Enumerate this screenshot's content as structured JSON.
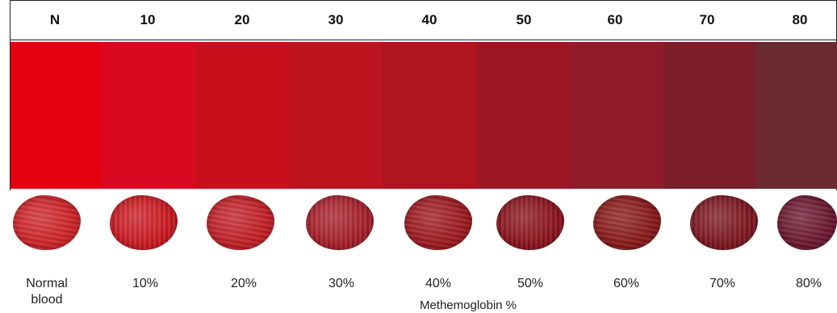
{
  "header_labels": [
    "N",
    "10",
    "20",
    "30",
    "40",
    "50",
    "60",
    "70",
    "80"
  ],
  "swatch_colors": [
    "#e50010",
    "#da0820",
    "#c8101c",
    "#bd1420",
    "#b0141e",
    "#9c1624",
    "#8e1a2a",
    "#7c1e2a",
    "#6a2a2e"
  ],
  "blob_colors": [
    "#cf2428",
    "#cc1a22",
    "#c22026",
    "#a8202a",
    "#9e1a20",
    "#8c141c",
    "#8a1a1a",
    "#7e1820",
    "#6c1830"
  ],
  "captions": [
    "Normal blood",
    "10%",
    "20%",
    "30%",
    "40%",
    "50%",
    "60%",
    "70%",
    "80%"
  ],
  "axis_title": "Methemoglobin %"
}
